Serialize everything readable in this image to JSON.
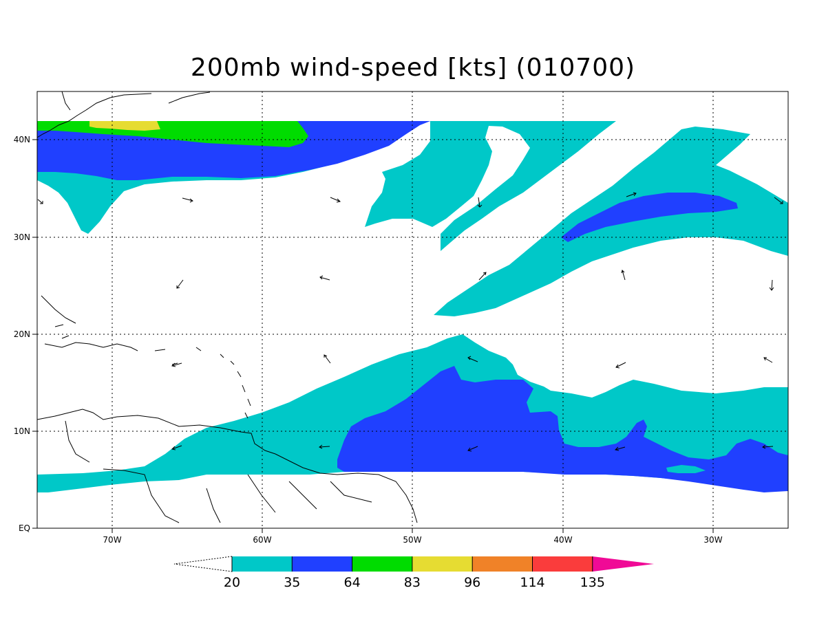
{
  "title": "200mb wind-speed [kts] (010700)",
  "map": {
    "lon_labels": [
      "70W",
      "60W",
      "50W",
      "40W",
      "30W"
    ],
    "lat_labels": [
      "EQ",
      "10N",
      "20N",
      "30N",
      "40N"
    ]
  },
  "colorbar": {
    "levels": [
      "20",
      "35",
      "64",
      "83",
      "96",
      "114",
      "135"
    ],
    "colors": [
      "#00c8c8",
      "#2040ff",
      "#00dc00",
      "#e6dc32",
      "#f08228",
      "#fa3c3c",
      "#f00a96"
    ]
  },
  "shading_colors": {
    "cyan": "#00c8c8",
    "blue": "#2040ff",
    "green": "#00dc00",
    "yellow": "#e6dc32"
  }
}
